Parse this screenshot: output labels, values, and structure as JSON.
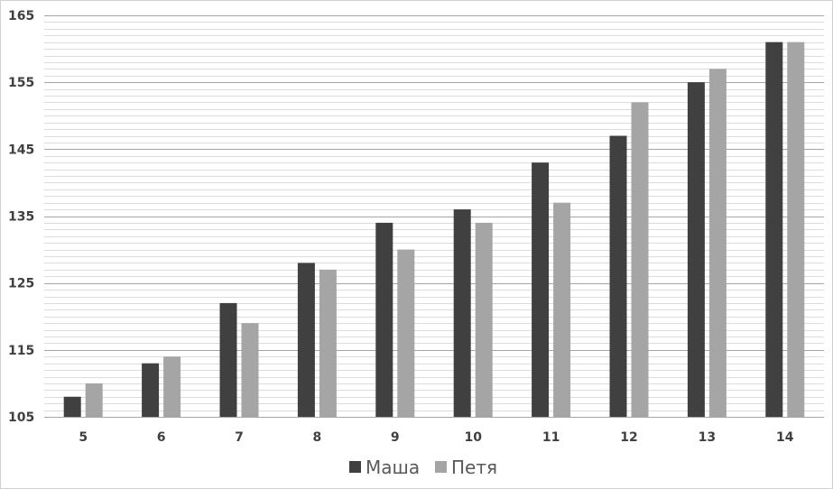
{
  "chart_data": {
    "type": "bar",
    "categories": [
      "5",
      "6",
      "7",
      "8",
      "9",
      "10",
      "11",
      "12",
      "13",
      "14"
    ],
    "series": [
      {
        "name": "Маша",
        "color": "#404040",
        "values": [
          108,
          113,
          122,
          128,
          134,
          136,
          143,
          147,
          155,
          161
        ]
      },
      {
        "name": "Петя",
        "color": "#a5a5a5",
        "values": [
          110,
          114,
          119,
          127,
          130,
          134,
          137,
          152,
          157,
          161
        ]
      }
    ],
    "ylim": [
      105,
      165
    ],
    "yticks": [
      "105",
      "115",
      "125",
      "135",
      "145",
      "155",
      "165"
    ],
    "major_step": 10,
    "minor_step": 1,
    "grid": true,
    "legend": "bottom",
    "title": "",
    "xlabel": "",
    "ylabel": ""
  }
}
